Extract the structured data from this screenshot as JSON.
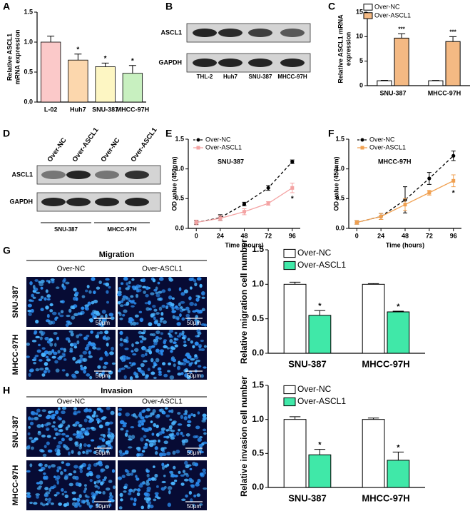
{
  "chart_data": [
    {
      "panel": "A",
      "type": "bar",
      "categories": [
        "L-02",
        "Huh7",
        "SNU-387",
        "MHCC-97H"
      ],
      "values": [
        1.0,
        0.7,
        0.59,
        0.48
      ],
      "errors": [
        0.1,
        0.1,
        0.06,
        0.13
      ],
      "annotations": [
        null,
        "*",
        "*",
        "*"
      ],
      "colors": [
        "#fbc9c9",
        "#fcd7ad",
        "#fdf6c3",
        "#c8f0c0"
      ],
      "ylabel": [
        "Relative ASCL1",
        "mRNA expression"
      ],
      "ylim": [
        0,
        1.5
      ],
      "yticks": [
        {
          "value": 0,
          "label": "0.0"
        },
        0.5,
        {
          "value": 1,
          "label": "1.0"
        },
        1.5
      ]
    },
    {
      "panel": "C",
      "type": "bar",
      "categories": [
        "SNU-387",
        "MHCC-97H"
      ],
      "series": [
        {
          "name": "Over-NC",
          "color": "#ffffff",
          "values": [
            1,
            1
          ],
          "errors": [
            0.1,
            0.08
          ]
        },
        {
          "name": "Over-ASCL1",
          "color": "#f4b983",
          "values": [
            9.7,
            9.0
          ],
          "errors": [
            0.9,
            1.0
          ],
          "annotations": [
            "***",
            "***"
          ]
        }
      ],
      "ylabel": [
        "Relative ASCL1 mRNA",
        "expression"
      ],
      "ylim": [
        0,
        15
      ],
      "yticks": [
        0,
        5,
        10,
        15
      ],
      "legend": "upper left"
    },
    {
      "panel": "E",
      "type": "line",
      "subtitle": "SNU-387",
      "x": [
        0,
        24,
        48,
        72,
        96
      ],
      "series": [
        {
          "name": "Over-NC",
          "color": "#000000",
          "linestyle": "dashed",
          "marker": "circle",
          "values": [
            0.1,
            0.18,
            0.41,
            0.68,
            1.12
          ],
          "errors": [
            0.03,
            0.05,
            0.03,
            0.04,
            0.03
          ]
        },
        {
          "name": "Over-ASCL1",
          "color": "#f4a3a3",
          "linestyle": "solid",
          "marker": "square",
          "values": [
            0.1,
            0.17,
            0.28,
            0.42,
            0.68
          ],
          "errors": [
            0.04,
            0.04,
            0.05,
            0.03,
            0.08
          ],
          "annotations": [
            null,
            null,
            null,
            null,
            "*"
          ]
        }
      ],
      "xlabel": "Time (hours)",
      "ylabel": [
        "OD value (450nm)"
      ],
      "xlim": [
        -8,
        104
      ],
      "xticks": [
        0,
        24,
        48,
        72,
        96
      ],
      "ylim": [
        0,
        1.5
      ],
      "yticks": [
        {
          "value": 0,
          "label": "0.0"
        },
        0.5,
        {
          "value": 1,
          "label": "1.0"
        },
        1.5
      ],
      "legend": "upper left"
    },
    {
      "panel": "F",
      "type": "line",
      "subtitle": "MHCC-97H",
      "x": [
        0,
        24,
        48,
        72,
        96
      ],
      "series": [
        {
          "name": "Over-NC",
          "color": "#000000",
          "linestyle": "dashed",
          "marker": "circle",
          "values": [
            0.1,
            0.2,
            0.48,
            0.84,
            1.22
          ],
          "errors": [
            0.03,
            0.05,
            0.22,
            0.1,
            0.08
          ]
        },
        {
          "name": "Over-ASCL1",
          "color": "#f0a050",
          "linestyle": "solid",
          "marker": "square",
          "values": [
            0.1,
            0.2,
            0.4,
            0.6,
            0.8
          ],
          "errors": [
            0.03,
            0.05,
            0.1,
            0.04,
            0.1
          ],
          "annotations": [
            null,
            null,
            null,
            null,
            "*"
          ]
        }
      ],
      "xlabel": "Time (hours)",
      "ylabel": [
        "OD value (450nm)"
      ],
      "xlim": [
        -8,
        104
      ],
      "xticks": [
        0,
        24,
        48,
        72,
        96
      ],
      "ylim": [
        0,
        1.5
      ],
      "yticks": [
        {
          "value": 0,
          "label": "0.0"
        },
        0.5,
        {
          "value": 1,
          "label": "1.0"
        },
        1.5
      ],
      "legend": "upper left"
    },
    {
      "panel": "G",
      "type": "bar",
      "categories": [
        "SNU-387",
        "MHCC-97H"
      ],
      "series": [
        {
          "name": "Over-NC",
          "color": "#ffffff",
          "values": [
            1.0,
            1.0
          ],
          "errors": [
            0.03,
            0.01
          ]
        },
        {
          "name": "Over-ASCL1",
          "color": "#40e8a8",
          "values": [
            0.55,
            0.6
          ],
          "errors": [
            0.07,
            0.01
          ],
          "annotations": [
            "*",
            "*"
          ]
        }
      ],
      "ylabel": [
        "Relative  migration cell number"
      ],
      "ylim": [
        0,
        1.5
      ],
      "yticks": [
        {
          "value": 0,
          "label": "0.0"
        },
        0.5,
        {
          "value": 1,
          "label": "1.0"
        },
        1.5
      ],
      "legend": "upper left"
    },
    {
      "panel": "H",
      "type": "bar",
      "categories": [
        "SNU-387",
        "MHCC-97H"
      ],
      "series": [
        {
          "name": "Over-NC",
          "color": "#ffffff",
          "values": [
            1.0,
            1.0
          ],
          "errors": [
            0.04,
            0.02
          ]
        },
        {
          "name": "Over-ASCL1",
          "color": "#40e8a8",
          "values": [
            0.48,
            0.4
          ],
          "errors": [
            0.08,
            0.12
          ],
          "annotations": [
            "*",
            "*"
          ]
        }
      ],
      "ylabel": [
        "Relative  invasion cell number"
      ],
      "ylim": [
        0,
        1.5
      ],
      "yticks": [
        {
          "value": 0,
          "label": "0.0"
        },
        0.5,
        {
          "value": 1,
          "label": "1.0"
        },
        1.5
      ],
      "legend": "upper left"
    }
  ],
  "blots": [
    {
      "panel": "B",
      "rows": [
        "ASCL1",
        "GAPDH"
      ],
      "lanes": [
        "THL-2",
        "Huh7",
        "SNU-387",
        "MHCC-97H"
      ]
    },
    {
      "panel": "D",
      "rows": [
        "ASCL1",
        "GAPDH"
      ],
      "lanes": [
        "Over-NC",
        "Over-ASCL1",
        "Over-NC",
        "Over-ASCL1"
      ],
      "groups": [
        "SNU-387",
        "MHCC-97H"
      ]
    }
  ],
  "micrographs": [
    {
      "panel": "G",
      "title": "Migration",
      "columns": [
        "Over-NC",
        "Over-ASCL1"
      ],
      "rows": [
        "SNU-387",
        "MHCC-97H"
      ],
      "scale_bar": "50μm"
    },
    {
      "panel": "H",
      "title": "Invasion",
      "columns": [
        "Over-NC",
        "Over-ASCL1"
      ],
      "rows": [
        "SNU-387",
        "MHCC-97H"
      ],
      "scale_bar": "50μm"
    }
  ]
}
